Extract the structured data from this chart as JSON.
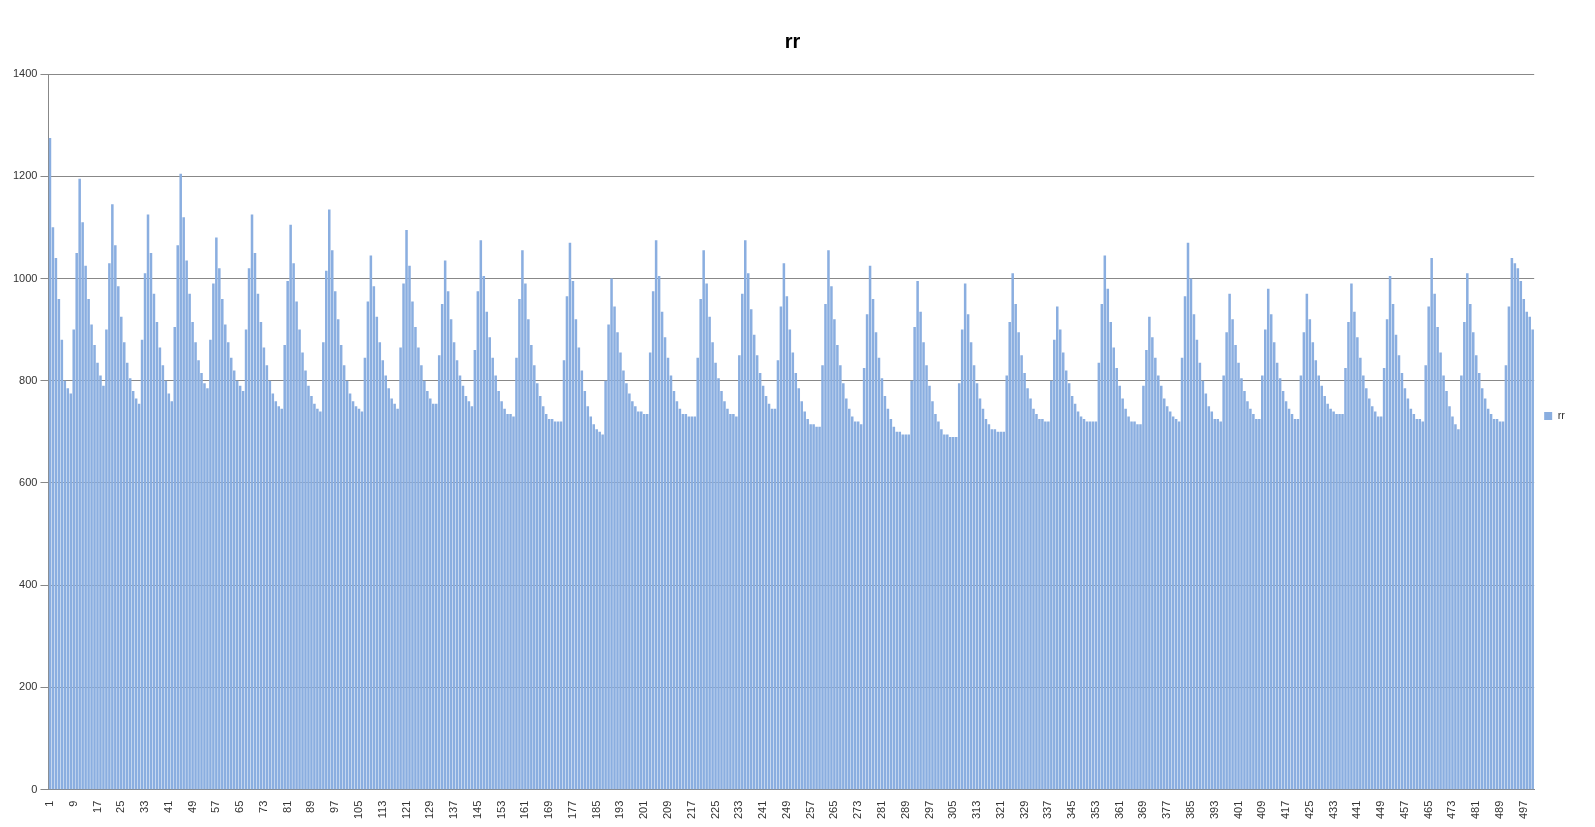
{
  "chart_data": {
    "type": "bar",
    "title": "rr",
    "categories": [
      "1",
      null,
      null,
      null,
      null,
      null,
      null,
      null,
      "9",
      null,
      null,
      null,
      null,
      null,
      null,
      null,
      "17",
      null,
      null,
      null,
      null,
      null,
      null,
      null,
      "25",
      null,
      null,
      null,
      null,
      null,
      null,
      null,
      "33",
      null,
      null,
      null,
      null,
      null,
      null,
      null,
      "41",
      null,
      null,
      null,
      null,
      null,
      null,
      null,
      "49",
      null,
      null,
      null,
      null,
      null,
      null,
      null,
      "57",
      null,
      null,
      null,
      null,
      null,
      null,
      null,
      "65",
      null,
      null,
      null,
      null,
      null,
      null,
      null,
      "73",
      null,
      null,
      null,
      null,
      null,
      null,
      null,
      "81",
      null,
      null,
      null,
      null,
      null,
      null,
      null,
      "89",
      null,
      null,
      null,
      null,
      null,
      null,
      null,
      "97",
      null,
      null,
      null,
      null,
      null,
      null,
      null,
      "105",
      null,
      null,
      null,
      null,
      null,
      null,
      null,
      "113",
      null,
      null,
      null,
      null,
      null,
      null,
      null,
      "121",
      null,
      null,
      null,
      null,
      null,
      null,
      null,
      "129",
      null,
      null,
      null,
      null,
      null,
      null,
      null,
      "137",
      null,
      null,
      null,
      null,
      null,
      null,
      null,
      "145",
      null,
      null,
      null,
      null,
      null,
      null,
      null,
      "153",
      null,
      null,
      null,
      null,
      null,
      null,
      null,
      "161",
      null,
      null,
      null,
      null,
      null,
      null,
      null,
      "169",
      null,
      null,
      null,
      null,
      null,
      null,
      null,
      "177",
      null,
      null,
      null,
      null,
      null,
      null,
      null,
      "185",
      null,
      null,
      null,
      null,
      null,
      null,
      null,
      "193",
      null,
      null,
      null,
      null,
      null,
      null,
      null,
      "201",
      null,
      null,
      null,
      null,
      null,
      null,
      null,
      "209",
      null,
      null,
      null,
      null,
      null,
      null,
      null,
      "217",
      null,
      null,
      null,
      null,
      null,
      null,
      null,
      "225",
      null,
      null,
      null,
      null,
      null,
      null,
      null,
      "233",
      null,
      null,
      null,
      null,
      null,
      null,
      null,
      "241",
      null,
      null,
      null,
      null,
      null,
      null,
      null,
      "249",
      null,
      null,
      null,
      null,
      null,
      null,
      null,
      "257",
      null,
      null,
      null,
      null,
      null,
      null,
      null,
      "265",
      null,
      null,
      null,
      null,
      null,
      null,
      null,
      "273",
      null,
      null,
      null,
      null,
      null,
      null,
      null,
      "281",
      null,
      null,
      null,
      null,
      null,
      null,
      null,
      "289",
      null,
      null,
      null,
      null,
      null,
      null,
      null,
      "297",
      null,
      null,
      null,
      null,
      null,
      null,
      null,
      "305",
      null,
      null,
      null,
      null,
      null,
      null,
      null,
      "313",
      null,
      null,
      null,
      null,
      null,
      null,
      null,
      "321",
      null,
      null,
      null,
      null,
      null,
      null,
      null,
      "329",
      null,
      null,
      null,
      null,
      null,
      null,
      null,
      "337",
      null,
      null,
      null,
      null,
      null,
      null,
      null,
      "345",
      null,
      null,
      null,
      null,
      null,
      null,
      null,
      "353",
      null,
      null,
      null,
      null,
      null,
      null,
      null,
      "361",
      null,
      null,
      null,
      null,
      null,
      null,
      null,
      "369",
      null,
      null,
      null,
      null,
      null,
      null,
      null,
      "377",
      null,
      null,
      null,
      null,
      null,
      null,
      null,
      "385",
      null,
      null,
      null,
      null,
      null,
      null,
      null,
      "393",
      null,
      null,
      null,
      null,
      null,
      null,
      null,
      "401",
      null,
      null,
      null,
      null,
      null,
      null,
      null,
      "409",
      null,
      null,
      null,
      null,
      null,
      null,
      null,
      "417",
      null,
      null,
      null,
      null,
      null,
      null,
      null,
      "425",
      null,
      null,
      null,
      null,
      null,
      null,
      null,
      "433",
      null,
      null,
      null,
      null,
      null,
      null,
      null,
      "441",
      null,
      null,
      null,
      null,
      null,
      null,
      null,
      "449",
      null,
      null,
      null,
      null,
      null,
      null,
      null,
      "457",
      null,
      null,
      null,
      null,
      null,
      null,
      null,
      "465",
      null,
      null,
      null,
      null,
      null,
      null,
      null,
      "473",
      null,
      null,
      null,
      null,
      null,
      null,
      null,
      "481",
      null,
      null,
      null,
      null,
      null,
      null,
      null,
      "489",
      null,
      null,
      null,
      null,
      null,
      null,
      null,
      "497",
      null,
      null,
      null
    ],
    "series": [
      {
        "name": "rr",
        "color": "#8aaee0",
        "values": [
          1275,
          1100,
          1040,
          960,
          880,
          800,
          785,
          775,
          900,
          1050,
          1195,
          1110,
          1025,
          960,
          910,
          870,
          835,
          810,
          790,
          900,
          1030,
          1145,
          1065,
          985,
          925,
          875,
          835,
          805,
          780,
          765,
          755,
          880,
          1010,
          1125,
          1050,
          970,
          915,
          865,
          830,
          800,
          775,
          760,
          905,
          1065,
          1205,
          1120,
          1035,
          970,
          915,
          875,
          840,
          815,
          795,
          785,
          880,
          990,
          1080,
          1020,
          960,
          910,
          875,
          845,
          820,
          800,
          790,
          780,
          900,
          1020,
          1125,
          1050,
          970,
          915,
          865,
          830,
          800,
          775,
          760,
          750,
          745,
          870,
          995,
          1105,
          1030,
          955,
          900,
          855,
          820,
          790,
          770,
          755,
          745,
          740,
          875,
          1015,
          1135,
          1055,
          975,
          920,
          870,
          830,
          800,
          775,
          760,
          750,
          745,
          740,
          845,
          955,
          1045,
          985,
          925,
          875,
          840,
          810,
          785,
          765,
          755,
          745,
          865,
          990,
          1095,
          1025,
          955,
          905,
          865,
          830,
          800,
          780,
          765,
          755,
          755,
          850,
          950,
          1035,
          975,
          920,
          875,
          840,
          810,
          790,
          770,
          760,
          750,
          860,
          975,
          1075,
          1005,
          935,
          885,
          845,
          810,
          780,
          760,
          745,
          735,
          735,
          730,
          845,
          960,
          1055,
          990,
          920,
          870,
          830,
          795,
          770,
          750,
          735,
          725,
          725,
          720,
          720,
          720,
          840,
          965,
          1070,
          995,
          920,
          865,
          820,
          780,
          750,
          730,
          715,
          705,
          700,
          695,
          800,
          910,
          1000,
          945,
          895,
          855,
          820,
          795,
          775,
          760,
          750,
          740,
          740,
          735,
          735,
          855,
          975,
          1075,
          1005,
          935,
          885,
          845,
          810,
          780,
          760,
          745,
          735,
          735,
          730,
          730,
          730,
          845,
          960,
          1055,
          990,
          925,
          875,
          835,
          805,
          780,
          760,
          745,
          735,
          735,
          730,
          850,
          970,
          1075,
          1010,
          940,
          890,
          850,
          815,
          790,
          770,
          755,
          745,
          745,
          840,
          945,
          1030,
          965,
          900,
          855,
          815,
          785,
          760,
          740,
          725,
          715,
          715,
          710,
          710,
          830,
          950,
          1055,
          985,
          920,
          870,
          830,
          795,
          765,
          745,
          730,
          720,
          720,
          715,
          825,
          930,
          1025,
          960,
          895,
          845,
          805,
          770,
          745,
          725,
          710,
          700,
          700,
          695,
          695,
          695,
          800,
          905,
          995,
          935,
          875,
          830,
          790,
          760,
          735,
          720,
          705,
          695,
          695,
          690,
          690,
          690,
          795,
          900,
          990,
          930,
          875,
          830,
          795,
          765,
          745,
          725,
          715,
          705,
          705,
          700,
          700,
          700,
          810,
          915,
          1010,
          950,
          895,
          850,
          815,
          785,
          765,
          745,
          735,
          725,
          725,
          720,
          720,
          800,
          880,
          945,
          900,
          855,
          820,
          795,
          770,
          755,
          740,
          730,
          725,
          720,
          720,
          720,
          720,
          835,
          950,
          1045,
          980,
          915,
          865,
          825,
          790,
          765,
          745,
          730,
          720,
          720,
          715,
          715,
          790,
          860,
          925,
          885,
          845,
          810,
          790,
          765,
          750,
          740,
          730,
          725,
          720,
          845,
          965,
          1070,
          1000,
          930,
          880,
          835,
          800,
          775,
          750,
          740,
          725,
          725,
          720,
          810,
          895,
          970,
          920,
          870,
          835,
          805,
          780,
          760,
          745,
          735,
          725,
          725,
          810,
          900,
          980,
          930,
          875,
          835,
          805,
          780,
          760,
          745,
          735,
          725,
          725,
          810,
          895,
          970,
          920,
          875,
          840,
          810,
          790,
          770,
          755,
          745,
          740,
          735,
          735,
          735,
          825,
          915,
          990,
          935,
          885,
          845,
          810,
          785,
          765,
          750,
          740,
          730,
          730,
          825,
          920,
          1005,
          950,
          890,
          850,
          815,
          785,
          765,
          745,
          735,
          725,
          725,
          720,
          830,
          945,
          1040,
          970,
          905,
          855,
          810,
          780,
          750,
          730,
          715,
          705,
          810,
          915,
          1010,
          950,
          895,
          850,
          815,
          785,
          765,
          745,
          735,
          725,
          725,
          720,
          720,
          830,
          945,
          1040,
          1030,
          1020,
          995,
          960,
          935,
          925,
          900
        ]
      }
    ],
    "ylim": [
      0,
      1400
    ],
    "yticks": [
      0,
      200,
      400,
      600,
      800,
      1000,
      1200,
      1400
    ],
    "grid": "y",
    "legend": "right"
  }
}
